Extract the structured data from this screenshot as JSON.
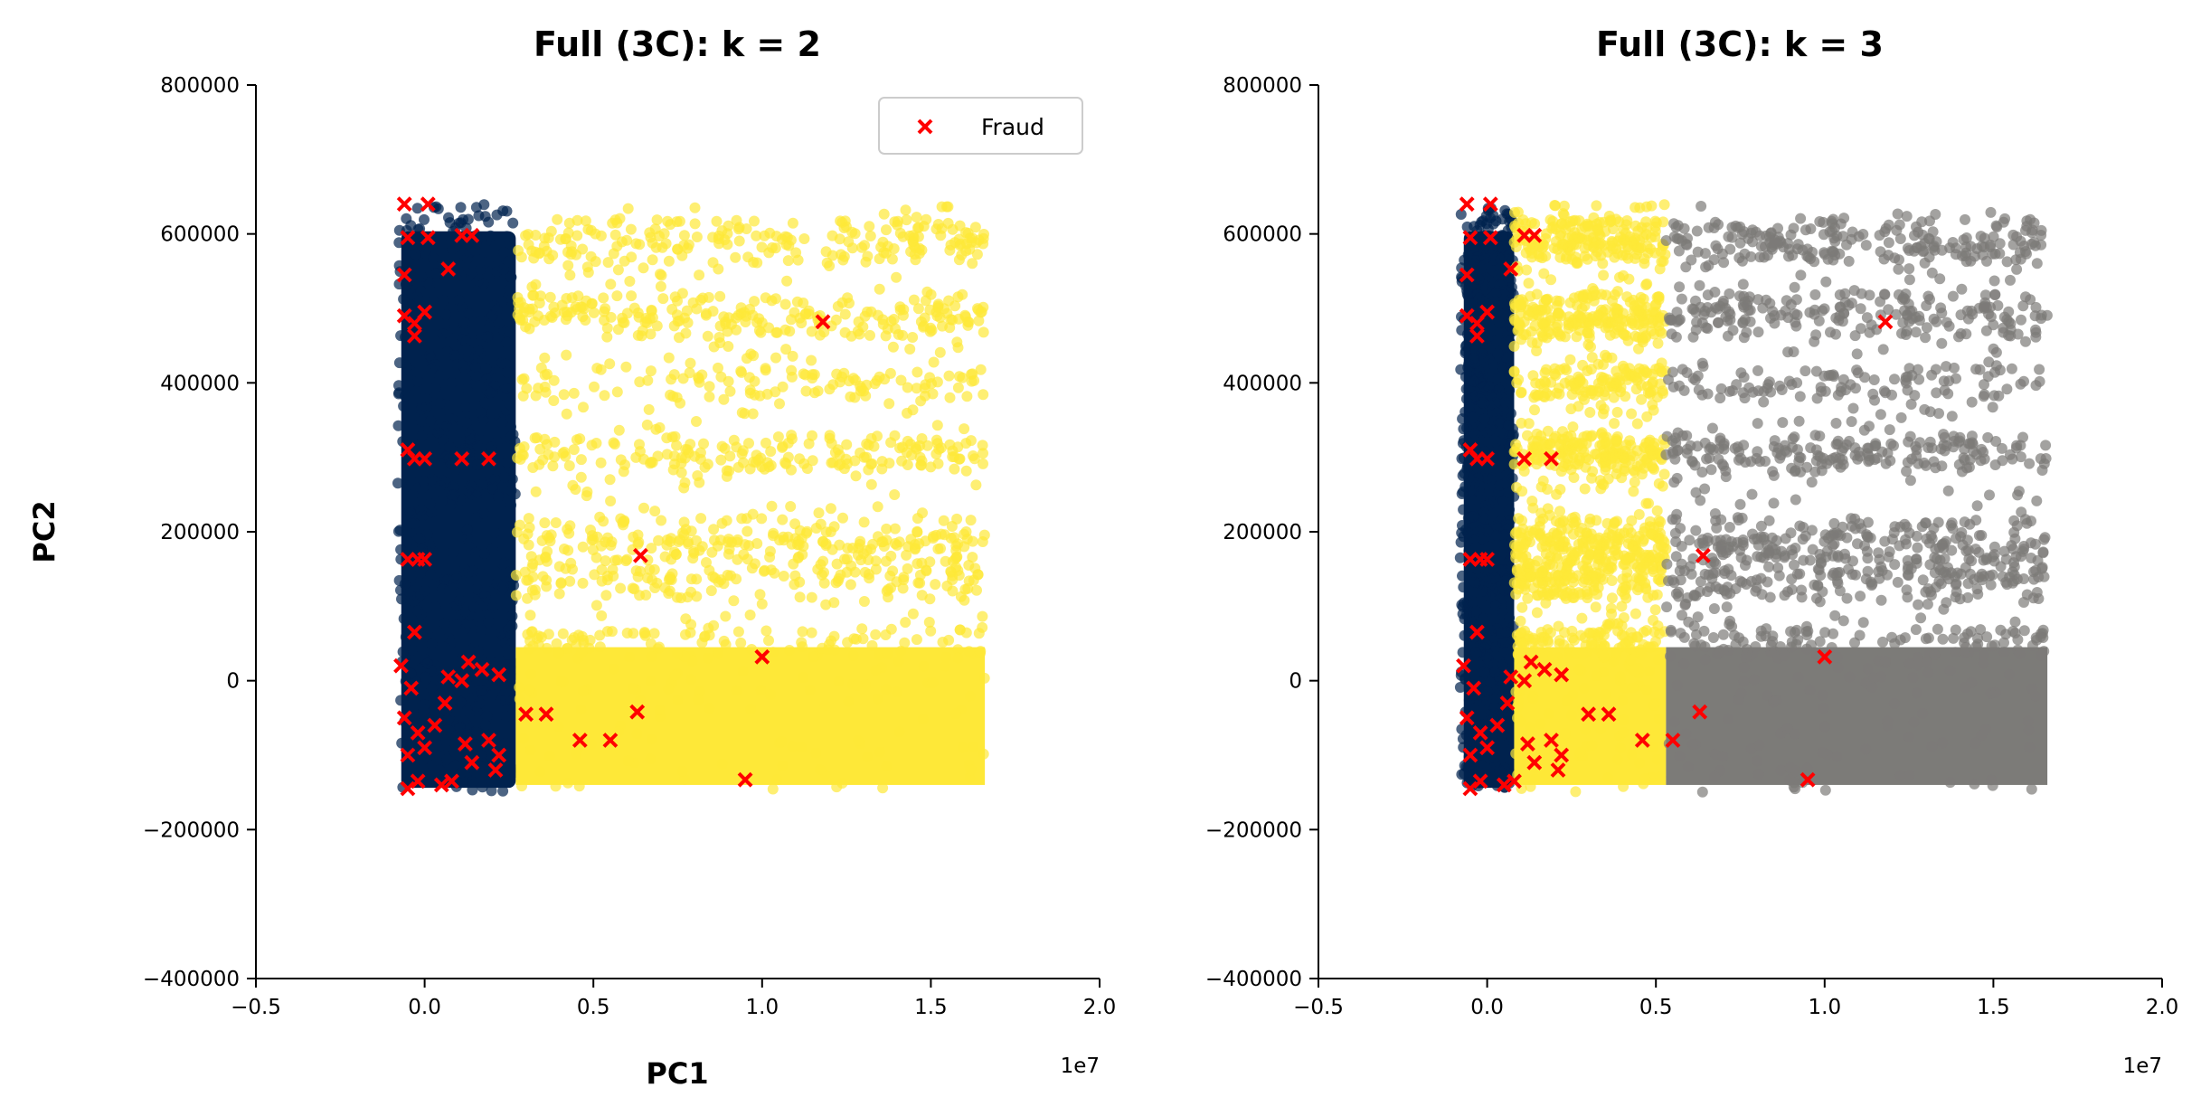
{
  "colors": {
    "cluster_navy": "#00224e",
    "cluster_yellow": "#fee838",
    "cluster_gray": "#7c7b78",
    "fraud_marker": "#ff0000"
  },
  "chart_data": [
    {
      "type": "scatter",
      "title": "Full (3C): k = 2",
      "xlabel": "PC1",
      "ylabel": "PC2",
      "x_offset_label": "1e7",
      "xlim": [
        -0.5,
        2.0
      ],
      "ylim": [
        -400000,
        800000
      ],
      "xticks": [
        -0.5,
        0.0,
        0.5,
        1.0,
        1.5,
        2.0
      ],
      "xtick_labels": [
        "−0.5",
        "0.0",
        "0.5",
        "1.0",
        "1.5",
        "2.0"
      ],
      "yticks": [
        -400000,
        -200000,
        0,
        200000,
        400000,
        600000,
        800000
      ],
      "ytick_labels": [
        "−400000",
        "−200000",
        "0",
        "200000",
        "400000",
        "600000",
        "800000"
      ],
      "grid": false,
      "legend": {
        "position": "top-right",
        "entries": [
          "Fraud"
        ]
      },
      "clusters": [
        {
          "color": "cluster_navy",
          "x_range": [
            -0.08,
            0.27
          ],
          "y_range": [
            -150000,
            640000
          ]
        },
        {
          "color": "cluster_yellow",
          "x_range": [
            0.27,
            1.66
          ],
          "y_range": [
            -150000,
            640000
          ]
        }
      ],
      "series": [
        {
          "name": "Fraud",
          "marker": "x",
          "points": [
            [
              -0.06,
              640000
            ],
            [
              0.01,
              640000
            ],
            [
              -0.05,
              595000
            ],
            [
              0.01,
              595000
            ],
            [
              0.11,
              598000
            ],
            [
              0.14,
              598000
            ],
            [
              0.07,
              553000
            ],
            [
              -0.06,
              545000
            ],
            [
              0.0,
              495000
            ],
            [
              -0.06,
              490000
            ],
            [
              -0.03,
              480000
            ],
            [
              -0.03,
              463000
            ],
            [
              1.18,
              482000
            ],
            [
              -0.05,
              310000
            ],
            [
              -0.03,
              298000
            ],
            [
              0.0,
              298000
            ],
            [
              0.11,
              298000
            ],
            [
              0.19,
              298000
            ],
            [
              -0.05,
              163000
            ],
            [
              -0.02,
              163000
            ],
            [
              0.0,
              163000
            ],
            [
              0.64,
              168000
            ],
            [
              -0.03,
              65000
            ],
            [
              1.0,
              32000
            ],
            [
              0.13,
              25000
            ],
            [
              0.17,
              15000
            ],
            [
              0.07,
              5000
            ],
            [
              0.22,
              8000
            ],
            [
              0.11,
              0
            ],
            [
              0.3,
              -45000
            ],
            [
              0.36,
              -45000
            ],
            [
              0.63,
              -42000
            ],
            [
              0.46,
              -80000
            ],
            [
              0.55,
              -80000
            ],
            [
              0.19,
              -80000
            ],
            [
              0.12,
              -85000
            ],
            [
              0.22,
              -100000
            ],
            [
              0.21,
              -120000
            ],
            [
              0.14,
              -110000
            ],
            [
              0.05,
              -140000
            ],
            [
              0.08,
              -135000
            ],
            [
              -0.02,
              -135000
            ],
            [
              -0.05,
              -145000
            ],
            [
              0.95,
              -133000
            ],
            [
              -0.07,
              20000
            ],
            [
              -0.04,
              -10000
            ],
            [
              -0.06,
              -50000
            ],
            [
              -0.02,
              -70000
            ],
            [
              0.0,
              -90000
            ],
            [
              -0.05,
              -100000
            ],
            [
              0.03,
              -60000
            ],
            [
              0.06,
              -30000
            ]
          ]
        }
      ]
    },
    {
      "type": "scatter",
      "title": "Full (3C): k = 3",
      "xlabel": "",
      "ylabel": "",
      "x_offset_label": "1e7",
      "xlim": [
        -0.5,
        2.0
      ],
      "ylim": [
        -400000,
        800000
      ],
      "xticks": [
        -0.5,
        0.0,
        0.5,
        1.0,
        1.5,
        2.0
      ],
      "xtick_labels": [
        "−0.5",
        "0.0",
        "0.5",
        "1.0",
        "1.5",
        "2.0"
      ],
      "yticks": [
        -400000,
        -200000,
        0,
        200000,
        400000,
        600000,
        800000
      ],
      "ytick_labels": [
        "−400000",
        "−200000",
        "0",
        "200000",
        "400000",
        "600000",
        "800000"
      ],
      "grid": false,
      "legend": null,
      "clusters": [
        {
          "color": "cluster_navy",
          "x_range": [
            -0.08,
            0.08
          ],
          "y_range": [
            -150000,
            640000
          ]
        },
        {
          "color": "cluster_yellow",
          "x_range": [
            0.08,
            0.53
          ],
          "y_range": [
            -150000,
            640000
          ]
        },
        {
          "color": "cluster_gray",
          "x_range": [
            0.53,
            1.66
          ],
          "y_range": [
            -150000,
            640000
          ]
        }
      ],
      "series": [
        {
          "marker": "x",
          "points": [
            [
              -0.06,
              640000
            ],
            [
              0.01,
              640000
            ],
            [
              -0.05,
              595000
            ],
            [
              0.01,
              595000
            ],
            [
              0.11,
              598000
            ],
            [
              0.14,
              598000
            ],
            [
              0.07,
              553000
            ],
            [
              -0.06,
              545000
            ],
            [
              0.0,
              495000
            ],
            [
              -0.06,
              490000
            ],
            [
              -0.03,
              480000
            ],
            [
              -0.03,
              463000
            ],
            [
              1.18,
              482000
            ],
            [
              -0.05,
              310000
            ],
            [
              -0.03,
              298000
            ],
            [
              0.0,
              298000
            ],
            [
              0.11,
              298000
            ],
            [
              0.19,
              298000
            ],
            [
              -0.05,
              163000
            ],
            [
              -0.02,
              163000
            ],
            [
              0.0,
              163000
            ],
            [
              0.64,
              168000
            ],
            [
              -0.03,
              65000
            ],
            [
              1.0,
              32000
            ],
            [
              0.13,
              25000
            ],
            [
              0.17,
              15000
            ],
            [
              0.07,
              5000
            ],
            [
              0.22,
              8000
            ],
            [
              0.11,
              0
            ],
            [
              0.3,
              -45000
            ],
            [
              0.36,
              -45000
            ],
            [
              0.63,
              -42000
            ],
            [
              0.46,
              -80000
            ],
            [
              0.55,
              -80000
            ],
            [
              0.19,
              -80000
            ],
            [
              0.12,
              -85000
            ],
            [
              0.22,
              -100000
            ],
            [
              0.21,
              -120000
            ],
            [
              0.14,
              -110000
            ],
            [
              0.05,
              -140000
            ],
            [
              0.08,
              -135000
            ],
            [
              -0.02,
              -135000
            ],
            [
              -0.05,
              -145000
            ],
            [
              0.95,
              -133000
            ],
            [
              -0.07,
              20000
            ],
            [
              -0.04,
              -10000
            ],
            [
              -0.06,
              -50000
            ],
            [
              -0.02,
              -70000
            ],
            [
              0.0,
              -90000
            ],
            [
              -0.05,
              -100000
            ],
            [
              0.03,
              -60000
            ],
            [
              0.06,
              -30000
            ]
          ]
        }
      ]
    }
  ]
}
